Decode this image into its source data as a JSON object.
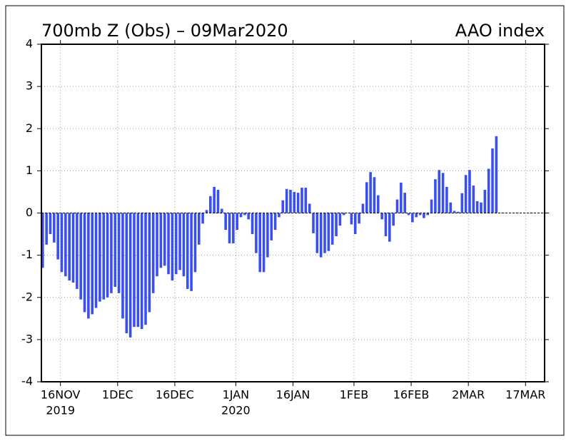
{
  "chart_data": {
    "type": "bar",
    "title": "700mb Z (Obs) – 09Mar2020",
    "subtitle": "AAO index",
    "color": "#3a4ff0",
    "grid": true,
    "x": [
      "2019-11-11",
      "2019-11-12",
      "2019-11-13",
      "2019-11-14",
      "2019-11-15",
      "2019-11-16",
      "2019-11-17",
      "2019-11-18",
      "2019-11-19",
      "2019-11-20",
      "2019-11-21",
      "2019-11-22",
      "2019-11-23",
      "2019-11-24",
      "2019-11-25",
      "2019-11-26",
      "2019-11-27",
      "2019-11-28",
      "2019-11-29",
      "2019-11-30",
      "2019-12-01",
      "2019-12-02",
      "2019-12-03",
      "2019-12-04",
      "2019-12-05",
      "2019-12-06",
      "2019-12-07",
      "2019-12-08",
      "2019-12-09",
      "2019-12-10",
      "2019-12-11",
      "2019-12-12",
      "2019-12-13",
      "2019-12-14",
      "2019-12-15",
      "2019-12-16",
      "2019-12-17",
      "2019-12-18",
      "2019-12-19",
      "2019-12-20",
      "2019-12-21",
      "2019-12-22",
      "2019-12-23",
      "2019-12-24",
      "2019-12-25",
      "2019-12-26",
      "2019-12-27",
      "2019-12-28",
      "2019-12-29",
      "2019-12-30",
      "2019-12-31",
      "2020-01-01",
      "2020-01-02",
      "2020-01-03",
      "2020-01-04",
      "2020-01-05",
      "2020-01-06",
      "2020-01-07",
      "2020-01-08",
      "2020-01-09",
      "2020-01-10",
      "2020-01-11",
      "2020-01-12",
      "2020-01-13",
      "2020-01-14",
      "2020-01-15",
      "2020-01-16",
      "2020-01-17",
      "2020-01-18",
      "2020-01-19",
      "2020-01-20",
      "2020-01-21",
      "2020-01-22",
      "2020-01-23",
      "2020-01-24",
      "2020-01-25",
      "2020-01-26",
      "2020-01-27",
      "2020-01-28",
      "2020-01-29",
      "2020-01-30",
      "2020-01-31",
      "2020-02-01",
      "2020-02-02",
      "2020-02-03",
      "2020-02-04",
      "2020-02-05",
      "2020-02-06",
      "2020-02-07",
      "2020-02-08",
      "2020-02-09",
      "2020-02-10",
      "2020-02-11",
      "2020-02-12",
      "2020-02-13",
      "2020-02-14",
      "2020-02-15",
      "2020-02-16",
      "2020-02-17",
      "2020-02-18",
      "2020-02-19",
      "2020-02-20",
      "2020-02-21",
      "2020-02-22",
      "2020-02-23",
      "2020-02-24",
      "2020-02-25",
      "2020-02-26",
      "2020-02-27",
      "2020-02-28",
      "2020-02-29",
      "2020-03-01",
      "2020-03-02",
      "2020-03-03",
      "2020-03-04",
      "2020-03-05",
      "2020-03-06",
      "2020-03-07",
      "2020-03-08",
      "2020-03-09"
    ],
    "values": [
      -1.3,
      -0.75,
      -0.5,
      -0.7,
      -1.1,
      -1.4,
      -1.5,
      -1.6,
      -1.65,
      -1.8,
      -2.05,
      -2.35,
      -2.5,
      -2.4,
      -2.25,
      -2.1,
      -2.05,
      -2.0,
      -1.9,
      -1.75,
      -1.9,
      -2.5,
      -2.85,
      -2.95,
      -2.7,
      -2.7,
      -2.75,
      -2.65,
      -2.35,
      -1.9,
      -1.5,
      -1.3,
      -1.25,
      -1.45,
      -1.6,
      -1.45,
      -1.35,
      -1.5,
      -1.8,
      -1.85,
      -1.4,
      -0.75,
      -0.25,
      0.07,
      0.4,
      0.62,
      0.55,
      0.1,
      -0.4,
      -0.72,
      -0.72,
      -0.4,
      -0.1,
      -0.05,
      -0.15,
      -0.5,
      -0.95,
      -1.4,
      -1.4,
      -1.05,
      -0.65,
      -0.4,
      -0.1,
      0.3,
      0.57,
      0.55,
      0.5,
      0.48,
      0.6,
      0.6,
      0.22,
      -0.48,
      -0.95,
      -1.05,
      -0.95,
      -0.9,
      -0.75,
      -0.55,
      -0.3,
      -0.05,
      0.0,
      -0.27,
      -0.5,
      -0.25,
      0.22,
      0.73,
      0.97,
      0.85,
      0.42,
      -0.15,
      -0.55,
      -0.68,
      -0.3,
      0.32,
      0.72,
      0.48,
      -0.05,
      -0.22,
      -0.1,
      -0.05,
      -0.12,
      -0.05,
      0.32,
      0.8,
      1.02,
      0.95,
      0.62,
      0.25,
      0.05,
      0.03,
      0.47,
      0.9,
      1.02,
      0.65,
      0.28,
      0.25,
      0.55,
      1.05,
      1.53,
      1.82
    ],
    "xlim": [
      "2019-11-11",
      "2020-03-22"
    ],
    "xticks": [
      {
        "value": "2019-11-16",
        "label": "16NOV"
      },
      {
        "value": "2019-12-01",
        "label": "1DEC"
      },
      {
        "value": "2019-12-16",
        "label": "16DEC"
      },
      {
        "value": "2020-01-01",
        "label": "1JAN"
      },
      {
        "value": "2020-01-16",
        "label": "16JAN"
      },
      {
        "value": "2020-02-01",
        "label": "1FEB"
      },
      {
        "value": "2020-02-16",
        "label": "16FEB"
      },
      {
        "value": "2020-03-02",
        "label": "2MAR"
      },
      {
        "value": "2020-03-17",
        "label": "17MAR"
      }
    ],
    "year_labels": [
      {
        "value": "2019-11-16",
        "label": "2019"
      },
      {
        "value": "2020-01-01",
        "label": "2020"
      }
    ],
    "ylim": [
      -4,
      4
    ],
    "yticks": [
      -4,
      -3,
      -2,
      -1,
      0,
      1,
      2,
      3,
      4
    ]
  }
}
